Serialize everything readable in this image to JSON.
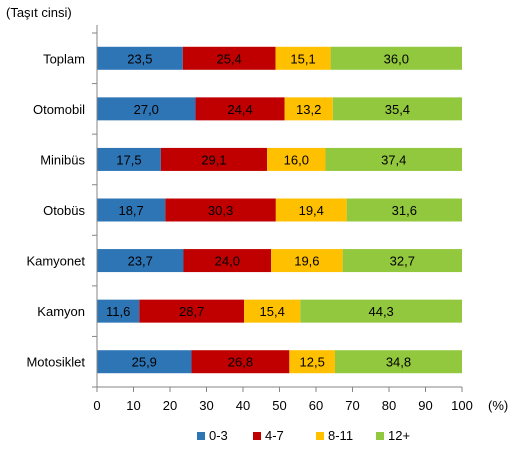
{
  "chart_data": {
    "type": "bar",
    "orientation": "horizontal",
    "stacked": true,
    "title": "(Taşıt cinsi)",
    "x_unit_label": "(%)",
    "categories": [
      "Toplam",
      "Otomobil",
      "Minibüs",
      "Otobüs",
      "Kamyonet",
      "Kamyon",
      "Motosiklet"
    ],
    "series": [
      {
        "name": "0-3",
        "color": "#2E75B6",
        "values": [
          23.5,
          27.0,
          17.5,
          18.7,
          23.7,
          11.6,
          25.9
        ],
        "labels": [
          "23,5",
          "27,0",
          "17,5",
          "18,7",
          "23,7",
          "11,6",
          "25,9"
        ]
      },
      {
        "name": "4-7",
        "color": "#C00000",
        "values": [
          25.4,
          24.4,
          29.1,
          30.3,
          24.0,
          28.7,
          26.8
        ],
        "labels": [
          "25,4",
          "24,4",
          "29,1",
          "30,3",
          "24,0",
          "28,7",
          "26,8"
        ]
      },
      {
        "name": "8-11",
        "color": "#FFC000",
        "values": [
          15.1,
          13.2,
          16.0,
          19.4,
          19.6,
          15.4,
          12.5
        ],
        "labels": [
          "15,1",
          "13,2",
          "16,0",
          "19,4",
          "19,6",
          "15,4",
          "12,5"
        ]
      },
      {
        "name": "12+",
        "color": "#92C83E",
        "values": [
          36.0,
          35.4,
          37.4,
          31.6,
          32.7,
          44.3,
          34.8
        ],
        "labels": [
          "36,0",
          "35,4",
          "37,4",
          "31,6",
          "32,7",
          "44,3",
          "34,8"
        ]
      }
    ],
    "xlim": [
      0,
      100
    ],
    "xticks": [
      0,
      10,
      20,
      30,
      40,
      50,
      60,
      70,
      80,
      90,
      100
    ],
    "grid": false,
    "legend_position": "bottom"
  }
}
